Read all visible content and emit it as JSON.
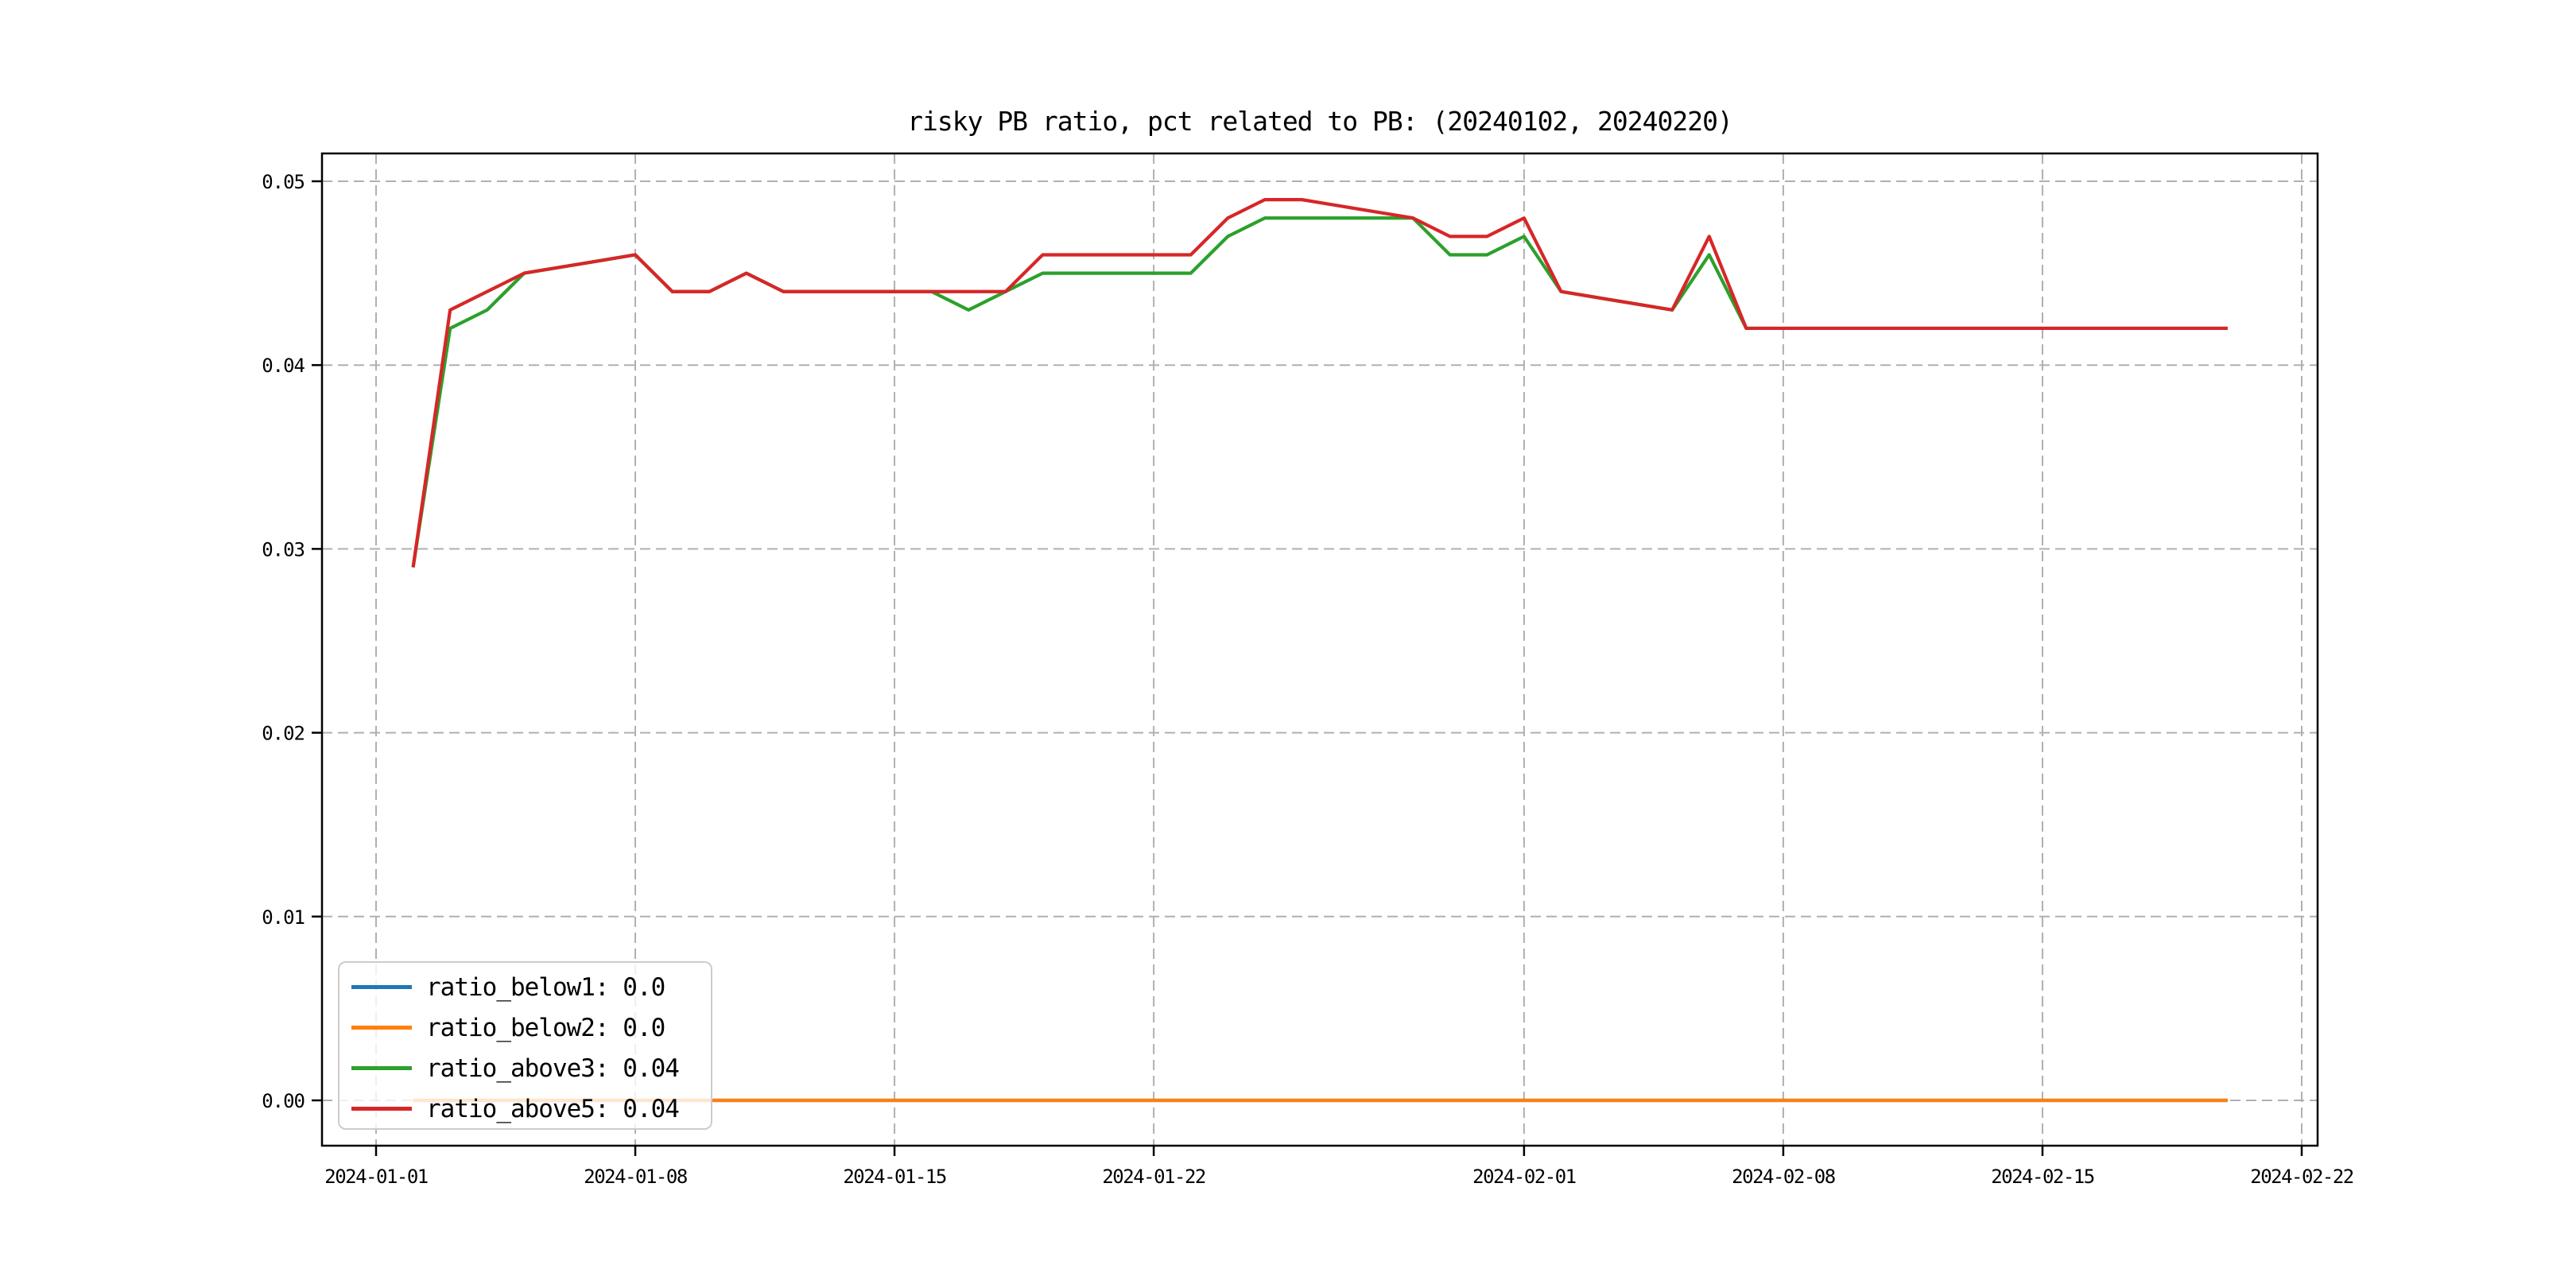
{
  "figure": {
    "background_color": "#ffffff",
    "text_color": "#000000",
    "grid_color": "#b0b0b0",
    "spine_color": "#000000"
  },
  "chart_data": {
    "type": "line",
    "title": "risky PB ratio, pct related to PB: (20240102, 20240220)",
    "xlabel": "",
    "ylabel": "",
    "grid": {
      "visible": true,
      "style": "dashed",
      "color": "#b0b0b0"
    },
    "legend_position": "lower left",
    "x_axis": {
      "tick_dates": [
        "2024-01-01",
        "2024-01-08",
        "2024-01-15",
        "2024-01-22",
        "2024-02-01",
        "2024-02-08",
        "2024-02-15",
        "2024-02-22"
      ],
      "tick_labels": [
        "2024-01-01",
        "2024-01-08",
        "2024-01-15",
        "2024-01-22",
        "2024-02-01",
        "2024-02-08",
        "2024-02-15",
        "2024-02-22"
      ],
      "min_date": "2023-12-30",
      "max_date": "2024-02-22"
    },
    "y_axis": {
      "ticks": [
        0.0,
        0.01,
        0.02,
        0.03,
        0.04,
        0.05
      ],
      "tick_labels": [
        "0.00",
        "0.01",
        "0.02",
        "0.03",
        "0.04",
        "0.05"
      ],
      "min": -0.0025,
      "max": 0.0515
    },
    "dates": [
      "2024-01-02",
      "2024-01-03",
      "2024-01-04",
      "2024-01-05",
      "2024-01-08",
      "2024-01-09",
      "2024-01-10",
      "2024-01-11",
      "2024-01-12",
      "2024-01-15",
      "2024-01-16",
      "2024-01-17",
      "2024-01-18",
      "2024-01-19",
      "2024-01-22",
      "2024-01-23",
      "2024-01-24",
      "2024-01-25",
      "2024-01-26",
      "2024-01-29",
      "2024-01-30",
      "2024-01-31",
      "2024-02-01",
      "2024-02-02",
      "2024-02-05",
      "2024-02-06",
      "2024-02-07",
      "2024-02-08",
      "2024-02-19",
      "2024-02-20"
    ],
    "series": [
      {
        "name": "ratio_below1",
        "color": "#1f77b4",
        "legend_label": "ratio_below1: 0.0",
        "values": [
          0.0,
          0.0,
          0.0,
          0.0,
          0.0,
          0.0,
          0.0,
          0.0,
          0.0,
          0.0,
          0.0,
          0.0,
          0.0,
          0.0,
          0.0,
          0.0,
          0.0,
          0.0,
          0.0,
          0.0,
          0.0,
          0.0,
          0.0,
          0.0,
          0.0,
          0.0,
          0.0,
          0.0,
          0.0,
          0.0
        ]
      },
      {
        "name": "ratio_below2",
        "color": "#ff7f0e",
        "legend_label": "ratio_below2: 0.0",
        "values": [
          0.0,
          0.0,
          0.0,
          0.0,
          0.0,
          0.0,
          0.0,
          0.0,
          0.0,
          0.0,
          0.0,
          0.0,
          0.0,
          0.0,
          0.0,
          0.0,
          0.0,
          0.0,
          0.0,
          0.0,
          0.0,
          0.0,
          0.0,
          0.0,
          0.0,
          0.0,
          0.0,
          0.0,
          0.0,
          0.0
        ]
      },
      {
        "name": "ratio_above3",
        "color": "#2ca02c",
        "legend_label": "ratio_above3: 0.04",
        "values": [
          0.029,
          0.042,
          0.043,
          0.045,
          0.046,
          0.044,
          0.044,
          0.045,
          0.044,
          0.044,
          0.044,
          0.043,
          0.044,
          0.045,
          0.045,
          0.045,
          0.047,
          0.048,
          0.048,
          0.048,
          0.046,
          0.046,
          0.047,
          0.044,
          0.043,
          0.046,
          0.042,
          0.042,
          0.042,
          0.042
        ]
      },
      {
        "name": "ratio_above5",
        "color": "#d62728",
        "legend_label": "ratio_above5: 0.04",
        "values": [
          0.029,
          0.043,
          0.044,
          0.045,
          0.046,
          0.044,
          0.044,
          0.045,
          0.044,
          0.044,
          0.044,
          0.044,
          0.044,
          0.046,
          0.046,
          0.046,
          0.048,
          0.049,
          0.049,
          0.048,
          0.047,
          0.047,
          0.048,
          0.044,
          0.043,
          0.047,
          0.042,
          0.042,
          0.042,
          0.042
        ]
      }
    ]
  }
}
